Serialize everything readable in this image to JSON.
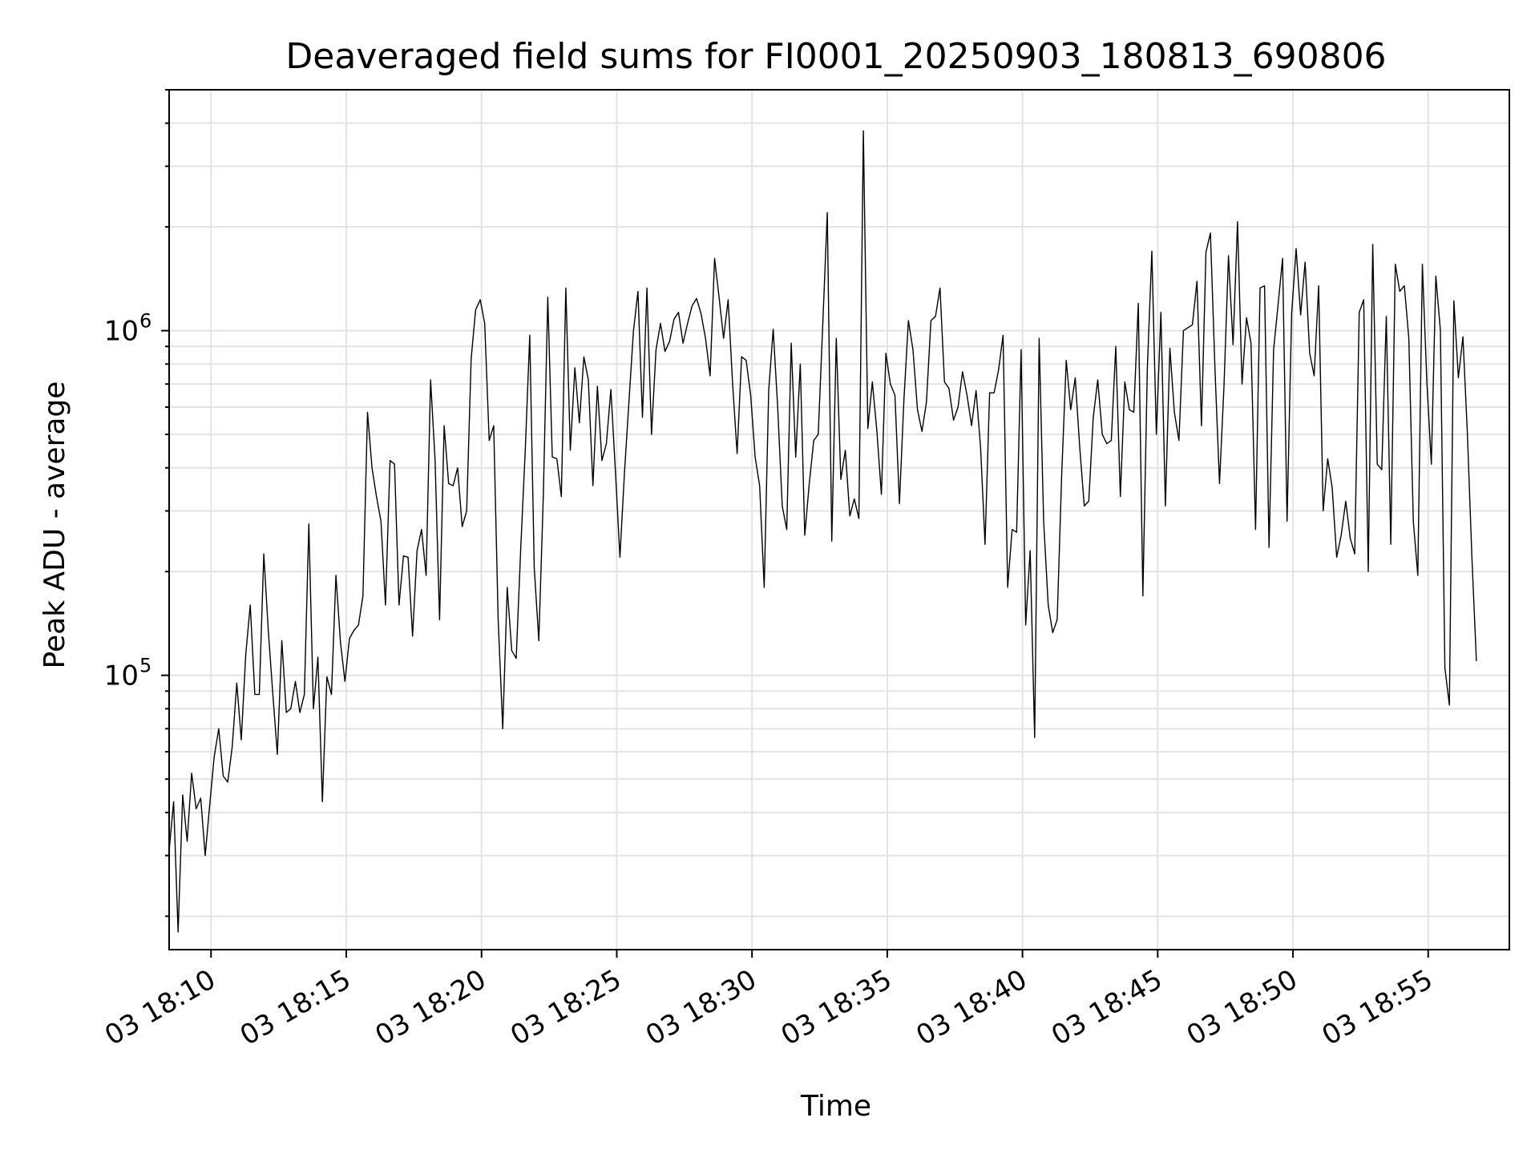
{
  "chart_data": {
    "type": "line",
    "title": "Deaveraged field sums for FI0001_20250903_180813_690806",
    "xlabel": "Time",
    "ylabel": "Peak ADU - average",
    "yscale": "log",
    "ylim": [
      16000,
      5000000
    ],
    "xlim": [
      "2025-09-03 18:08:27",
      "2025-09-03 18:58:00"
    ],
    "grid": true,
    "line_color": "#000000",
    "grid_color": "#e3e3e3",
    "x_ticks": [
      "03 18:10",
      "03 18:15",
      "03 18:20",
      "03 18:25",
      "03 18:30",
      "03 18:35",
      "03 18:40",
      "03 18:45",
      "03 18:50",
      "03 18:55"
    ],
    "y_ticks": [
      {
        "value": 100000,
        "base": "10",
        "exp": "5"
      },
      {
        "value": 1000000,
        "base": "10",
        "exp": "6"
      }
    ],
    "x_start": "2025-09-03 18:08:27",
    "x_step": "10 s",
    "series": [
      {
        "values": [
          31000,
          43000,
          18000,
          45000,
          33000,
          52000,
          41000,
          44000,
          30000,
          42000,
          58000,
          70000,
          51000,
          49000,
          62000,
          95000,
          65000,
          115000,
          160000,
          88000,
          88000,
          225000,
          135000,
          88000,
          59000,
          126000,
          78000,
          80000,
          96000,
          78000,
          88000,
          275000,
          80000,
          113000,
          43000,
          99000,
          88000,
          195000,
          125000,
          96000,
          128000,
          135000,
          140000,
          170000,
          580000,
          400000,
          330000,
          280000,
          160000,
          420000,
          410000,
          160000,
          222000,
          220000,
          130000,
          230000,
          265000,
          195000,
          720000,
          420000,
          145000,
          530000,
          360000,
          355000,
          400000,
          270000,
          300000,
          830000,
          1150000,
          1230000,
          1050000,
          480000,
          530000,
          145000,
          70000,
          180000,
          118000,
          112000,
          235000,
          450000,
          970000,
          205000,
          126000,
          330000,
          1250000,
          430000,
          425000,
          330000,
          1330000,
          450000,
          780000,
          540000,
          840000,
          720000,
          355000,
          690000,
          420000,
          470000,
          675000,
          390000,
          220000,
          385000,
          620000,
          1000000,
          1300000,
          560000,
          1330000,
          500000,
          880000,
          1050000,
          870000,
          930000,
          1080000,
          1130000,
          920000,
          1050000,
          1180000,
          1240000,
          1120000,
          950000,
          740000,
          1620000,
          1250000,
          950000,
          1230000,
          700000,
          440000,
          840000,
          820000,
          650000,
          430000,
          355000,
          180000,
          670000,
          1010000,
          600000,
          310000,
          265000,
          920000,
          430000,
          800000,
          255000,
          360000,
          480000,
          500000,
          1050000,
          2200000,
          245000,
          950000,
          370000,
          450000,
          290000,
          325000,
          285000,
          3800000,
          520000,
          710000,
          510000,
          335000,
          860000,
          700000,
          650000,
          315000,
          630000,
          1070000,
          880000,
          590000,
          510000,
          620000,
          1070000,
          1100000,
          1330000,
          710000,
          680000,
          550000,
          600000,
          760000,
          650000,
          530000,
          670000,
          460000,
          240000,
          660000,
          660000,
          770000,
          970000,
          180000,
          265000,
          260000,
          880000,
          140000,
          230000,
          66000,
          950000,
          280000,
          160000,
          133000,
          145000,
          380000,
          820000,
          590000,
          730000,
          460000,
          310000,
          320000,
          560000,
          720000,
          500000,
          470000,
          480000,
          900000,
          330000,
          710000,
          590000,
          580000,
          1200000,
          170000,
          780000,
          1700000,
          500000,
          1130000,
          310000,
          890000,
          580000,
          480000,
          1000000,
          1020000,
          1040000,
          1390000,
          530000,
          1690000,
          1920000,
          770000,
          360000,
          690000,
          1650000,
          910000,
          2070000,
          700000,
          1090000,
          920000,
          265000,
          1330000,
          1350000,
          235000,
          880000,
          1190000,
          1620000,
          280000,
          1120000,
          1730000,
          1110000,
          1580000,
          860000,
          740000,
          1350000,
          300000,
          425000,
          350000,
          220000,
          255000,
          320000,
          250000,
          225000,
          1130000,
          1230000,
          200000,
          1780000,
          410000,
          395000,
          1100000,
          240000,
          1560000,
          1300000,
          1350000,
          950000,
          280000,
          195000,
          1560000,
          710000,
          410000,
          1440000,
          1000000,
          105000,
          82000,
          1220000,
          730000,
          960000,
          500000,
          220000,
          110000
        ]
      }
    ]
  }
}
